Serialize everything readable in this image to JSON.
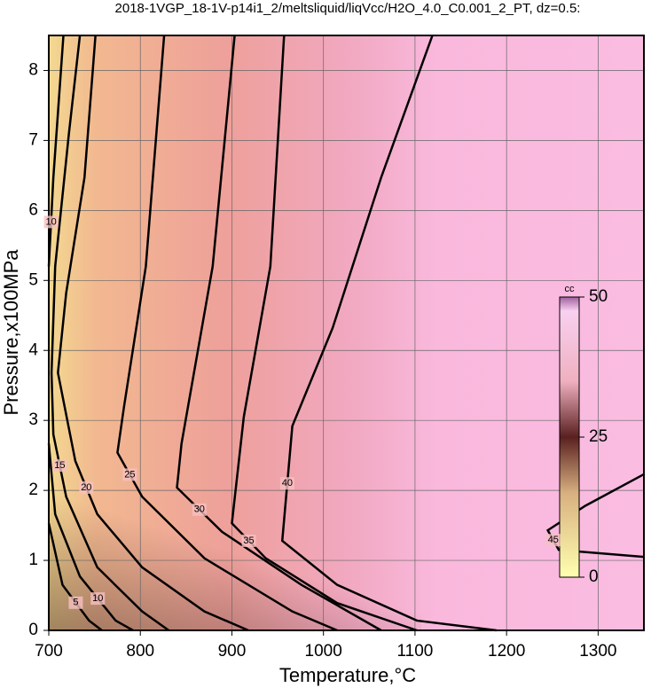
{
  "chart_data": {
    "type": "contour",
    "title": "2018-1VGP_18-1V-p14i1_2/meltsliquid/liqVcc/H2O_4.0_C0.001_2_PT, dz=0.5:",
    "x_label": "Temperature,°C",
    "y_label": "Pressure,x100MPa",
    "xlim": [
      700,
      1350
    ],
    "ylim": [
      0,
      8.5
    ],
    "xticks": [
      700,
      800,
      900,
      1000,
      1100,
      1200,
      1300
    ],
    "yticks": [
      0,
      1,
      2,
      3,
      4,
      5,
      6,
      7,
      8
    ],
    "grid": true,
    "colorbar": {
      "label": "cc",
      "clim": [
        0,
        50
      ],
      "ticks": [
        0,
        25,
        50
      ]
    },
    "contours": [
      {
        "level": 5,
        "x": [
          700,
          715,
          744,
          758
        ],
        "y": [
          1.53,
          0.65,
          0.14,
          0
        ]
      },
      {
        "level": 10,
        "x": [
          716,
          705,
          700
        ],
        "y": [
          8.5,
          6.47,
          5.2
        ]
      },
      {
        "level": 10,
        "x": [
          700,
          707,
          734,
          773,
          792
        ],
        "y": [
          2.67,
          1.66,
          0.77,
          0.14,
          0
        ]
      },
      {
        "level": 15,
        "x": [
          734,
          722,
          707,
          703,
          705,
          719,
          753,
          802,
          831
        ],
        "y": [
          8.5,
          7.1,
          5.2,
          3.68,
          2.8,
          1.91,
          0.9,
          0.27,
          0
        ]
      },
      {
        "level": 20,
        "x": [
          751,
          739,
          719,
          710,
          729,
          753,
          802,
          870,
          918
        ],
        "y": [
          8.5,
          6.47,
          4.82,
          3.68,
          2.42,
          1.66,
          0.9,
          0.27,
          0
        ]
      },
      {
        "level": 25,
        "x": [
          826,
          806,
          782,
          775,
          802,
          870,
          966,
          1015
        ],
        "y": [
          8.5,
          5.2,
          3.18,
          2.54,
          1.91,
          1.03,
          0.27,
          0
        ]
      },
      {
        "level": 30,
        "x": [
          903,
          879,
          845,
          840,
          889,
          976,
          1063
        ],
        "y": [
          8.5,
          5.2,
          2.67,
          2.04,
          1.41,
          0.65,
          0
        ]
      },
      {
        "level": 35,
        "x": [
          957,
          942,
          913,
          900,
          937,
          1015,
          1102
        ],
        "y": [
          8.5,
          5.2,
          3.05,
          1.53,
          1.03,
          0.39,
          0
        ]
      },
      {
        "level": 40,
        "x": [
          1119,
          1063,
          1010,
          966,
          955,
          1015,
          1102,
          1189
        ],
        "y": [
          8.5,
          6.47,
          4.32,
          2.92,
          1.28,
          0.65,
          0.14,
          0
        ]
      },
      {
        "level": 45,
        "x": [
          1350,
          1286,
          1245,
          1257,
          1350
        ],
        "y": [
          2.23,
          1.78,
          1.43,
          1.15,
          1.05
        ]
      }
    ]
  }
}
